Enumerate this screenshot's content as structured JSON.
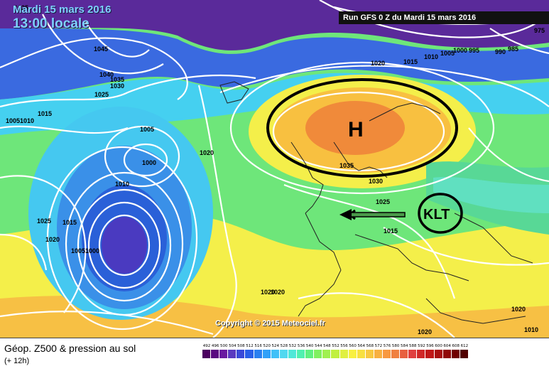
{
  "header": {
    "date": "Mardi 15 mars 2016",
    "time": "13:00 locale",
    "run": "Run GFS 0 Z du Mardi 15 mars 2016"
  },
  "copyright": "Copyright © 2015 Meteociel.fr",
  "legend": {
    "title": "Géop. Z500 & pression au sol",
    "subtitle": "(+ 12h)",
    "scale_values": [
      "492",
      "496",
      "500",
      "504",
      "508",
      "512",
      "516",
      "520",
      "524",
      "528",
      "532",
      "536",
      "540",
      "544",
      "548",
      "552",
      "556",
      "560",
      "564",
      "568",
      "572",
      "576",
      "580",
      "584",
      "588",
      "592",
      "596",
      "600",
      "604",
      "608",
      "612"
    ],
    "scale_colors": [
      "#4b0060",
      "#5a0a80",
      "#6a1aa0",
      "#5a3ac0",
      "#3a4ad8",
      "#2a60e8",
      "#2a80f0",
      "#30a0f8",
      "#40c0f8",
      "#50d8f0",
      "#50e8d8",
      "#50f0b0",
      "#60f080",
      "#80f060",
      "#a0f050",
      "#c0f040",
      "#e0f040",
      "#f8f040",
      "#f8e040",
      "#f8c840",
      "#f8b040",
      "#f89840",
      "#f08040",
      "#e86040",
      "#e04040",
      "#d02828",
      "#c01818",
      "#a81010",
      "#900808",
      "#700000",
      "#500000"
    ]
  },
  "annotations": {
    "high_label": "H",
    "klt_label": "KLT"
  },
  "isobar_labels": [
    "1025",
    "1045",
    "1040",
    "1035",
    "1030",
    "1025",
    "1015",
    "10051010",
    "1005",
    "1000",
    "1010",
    "1020",
    "1025",
    "1015",
    "1020",
    "10051000",
    "1020",
    "1035",
    "1030",
    "1025",
    "1015",
    "1020",
    "1015",
    "1010",
    "1005",
    "1000",
    "995",
    "990",
    "985",
    "975",
    "1020",
    "1010",
    "1015",
    "1020",
    "1020",
    "1020"
  ],
  "colors": {
    "contour": "#ffffff",
    "high_circle": "#000000",
    "coastline": "#222222"
  }
}
